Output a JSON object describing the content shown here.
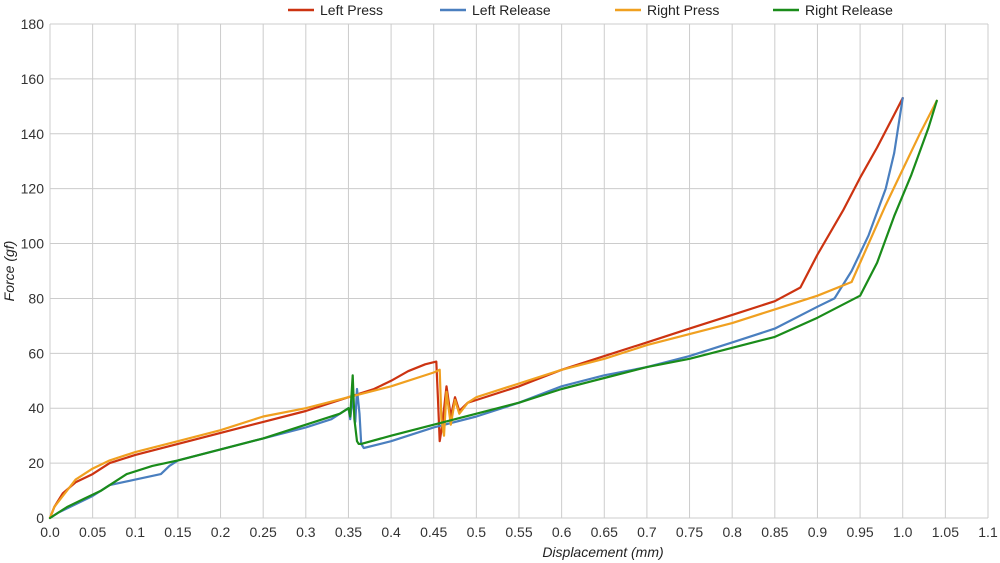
{
  "chart_data": {
    "type": "line",
    "xlabel": "Displacement (mm)",
    "ylabel": "Force (gf)",
    "xlim": [
      0,
      1.1
    ],
    "ylim": [
      0,
      180
    ],
    "x_ticks": [
      0,
      0.05,
      0.1,
      0.15,
      0.2,
      0.25,
      0.3,
      0.35,
      0.4,
      0.45,
      0.5,
      0.55,
      0.6,
      0.65,
      0.7,
      0.75,
      0.8,
      0.85,
      0.9,
      0.95,
      1.0,
      1.05,
      1.1
    ],
    "x_tick_labels": [
      "0.0",
      "0.05",
      "0.1",
      "0.15",
      "0.2",
      "0.25",
      "0.3",
      "0.35",
      "0.4",
      "0.45",
      "0.5",
      "0.55",
      "0.6",
      "0.65",
      "0.7",
      "0.75",
      "0.8",
      "0.85",
      "0.9",
      "0.95",
      "1.0",
      "1.05",
      "1.1"
    ],
    "y_ticks": [
      0,
      20,
      40,
      60,
      80,
      100,
      120,
      140,
      160,
      180
    ],
    "y_tick_labels": [
      "0",
      "20",
      "40",
      "60",
      "80",
      "100",
      "120",
      "140",
      "160",
      "180"
    ],
    "grid": true,
    "legend_position": "top",
    "series": [
      {
        "name": "Left Press",
        "color": "#cc3311",
        "points": [
          [
            0,
            0
          ],
          [
            0.005,
            4
          ],
          [
            0.015,
            9
          ],
          [
            0.03,
            13
          ],
          [
            0.05,
            16
          ],
          [
            0.07,
            20
          ],
          [
            0.1,
            23
          ],
          [
            0.15,
            27
          ],
          [
            0.2,
            31
          ],
          [
            0.25,
            35
          ],
          [
            0.3,
            39
          ],
          [
            0.35,
            44
          ],
          [
            0.38,
            47
          ],
          [
            0.4,
            50
          ],
          [
            0.42,
            53.5
          ],
          [
            0.44,
            56
          ],
          [
            0.453,
            57
          ],
          [
            0.455,
            43
          ],
          [
            0.457,
            28
          ],
          [
            0.46,
            34
          ],
          [
            0.465,
            48
          ],
          [
            0.47,
            37
          ],
          [
            0.475,
            44
          ],
          [
            0.48,
            39
          ],
          [
            0.49,
            42
          ],
          [
            0.5,
            43
          ],
          [
            0.55,
            48
          ],
          [
            0.6,
            54
          ],
          [
            0.65,
            59
          ],
          [
            0.7,
            64
          ],
          [
            0.75,
            69
          ],
          [
            0.8,
            74
          ],
          [
            0.85,
            79
          ],
          [
            0.88,
            84
          ],
          [
            0.9,
            96
          ],
          [
            0.93,
            112
          ],
          [
            0.95,
            124
          ],
          [
            0.97,
            135
          ],
          [
            0.99,
            147
          ],
          [
            1.0,
            153
          ]
        ]
      },
      {
        "name": "Left Release",
        "color": "#4a7fbf",
        "points": [
          [
            0,
            0
          ],
          [
            0.01,
            2
          ],
          [
            0.03,
            5
          ],
          [
            0.05,
            8
          ],
          [
            0.07,
            12
          ],
          [
            0.1,
            14
          ],
          [
            0.13,
            16
          ],
          [
            0.14,
            19
          ],
          [
            0.15,
            21
          ],
          [
            0.2,
            25
          ],
          [
            0.25,
            29
          ],
          [
            0.3,
            33
          ],
          [
            0.33,
            36
          ],
          [
            0.35,
            40
          ],
          [
            0.352,
            36
          ],
          [
            0.355,
            44
          ],
          [
            0.358,
            35
          ],
          [
            0.36,
            47
          ],
          [
            0.363,
            38
          ],
          [
            0.365,
            27
          ],
          [
            0.368,
            25.5
          ],
          [
            0.4,
            28
          ],
          [
            0.45,
            33
          ],
          [
            0.5,
            37
          ],
          [
            0.55,
            42
          ],
          [
            0.6,
            48
          ],
          [
            0.65,
            52
          ],
          [
            0.7,
            55
          ],
          [
            0.75,
            59
          ],
          [
            0.8,
            64
          ],
          [
            0.85,
            69
          ],
          [
            0.9,
            77
          ],
          [
            0.92,
            80
          ],
          [
            0.94,
            90
          ],
          [
            0.96,
            103
          ],
          [
            0.98,
            120
          ],
          [
            0.99,
            133
          ],
          [
            1.0,
            153
          ]
        ]
      },
      {
        "name": "Right Press",
        "color": "#f0a020",
        "points": [
          [
            0,
            0
          ],
          [
            0.005,
            4
          ],
          [
            0.015,
            8
          ],
          [
            0.03,
            14
          ],
          [
            0.05,
            18
          ],
          [
            0.07,
            21
          ],
          [
            0.1,
            24
          ],
          [
            0.15,
            28
          ],
          [
            0.2,
            32
          ],
          [
            0.25,
            37
          ],
          [
            0.3,
            40
          ],
          [
            0.35,
            44
          ],
          [
            0.4,
            48
          ],
          [
            0.45,
            53
          ],
          [
            0.457,
            54
          ],
          [
            0.459,
            36
          ],
          [
            0.462,
            30
          ],
          [
            0.465,
            46
          ],
          [
            0.47,
            34
          ],
          [
            0.475,
            43
          ],
          [
            0.48,
            38
          ],
          [
            0.49,
            42
          ],
          [
            0.5,
            44
          ],
          [
            0.55,
            49
          ],
          [
            0.6,
            54
          ],
          [
            0.65,
            58
          ],
          [
            0.7,
            63
          ],
          [
            0.75,
            67
          ],
          [
            0.8,
            71
          ],
          [
            0.85,
            76
          ],
          [
            0.9,
            81
          ],
          [
            0.94,
            86
          ],
          [
            0.96,
            100
          ],
          [
            0.98,
            114
          ],
          [
            1.0,
            127
          ],
          [
            1.02,
            140
          ],
          [
            1.04,
            152
          ]
        ]
      },
      {
        "name": "Right Release",
        "color": "#1a8c1a",
        "points": [
          [
            0,
            0
          ],
          [
            0.01,
            2
          ],
          [
            0.02,
            4
          ],
          [
            0.04,
            7
          ],
          [
            0.06,
            10
          ],
          [
            0.08,
            14
          ],
          [
            0.09,
            16
          ],
          [
            0.12,
            19
          ],
          [
            0.15,
            21
          ],
          [
            0.2,
            25
          ],
          [
            0.25,
            29
          ],
          [
            0.3,
            34
          ],
          [
            0.34,
            38
          ],
          [
            0.35,
            40
          ],
          [
            0.352,
            37
          ],
          [
            0.355,
            52
          ],
          [
            0.357,
            36
          ],
          [
            0.36,
            28
          ],
          [
            0.362,
            27
          ],
          [
            0.365,
            27
          ],
          [
            0.4,
            30
          ],
          [
            0.45,
            34
          ],
          [
            0.5,
            38
          ],
          [
            0.55,
            42
          ],
          [
            0.6,
            47
          ],
          [
            0.65,
            51
          ],
          [
            0.7,
            55
          ],
          [
            0.75,
            58
          ],
          [
            0.8,
            62
          ],
          [
            0.85,
            66
          ],
          [
            0.9,
            73
          ],
          [
            0.95,
            81
          ],
          [
            0.97,
            93
          ],
          [
            0.99,
            110
          ],
          [
            1.01,
            125
          ],
          [
            1.03,
            142
          ],
          [
            1.04,
            152
          ]
        ]
      }
    ]
  }
}
